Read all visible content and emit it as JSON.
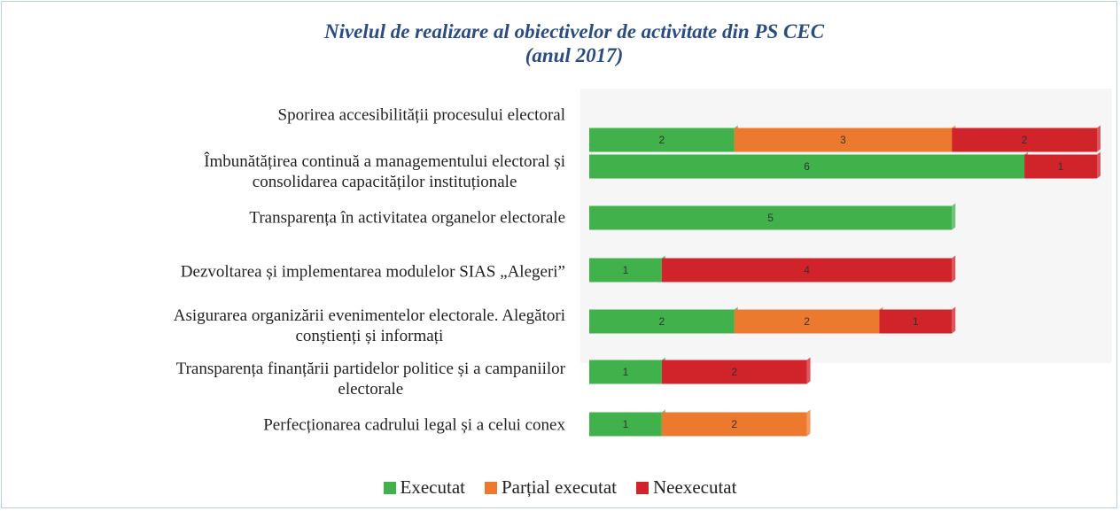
{
  "chart_data": {
    "type": "stacked-barh",
    "title": "Nivelul de realizare al obiectivelor de activitate din PS CEC\n(anul 2017)",
    "categories": [
      "Sporirea accesibilității procesului electoral",
      "Îmbunătățirea continuă a managementului electoral și\nconsolidarea capacităților instituționale",
      "Transparența în activitatea organelor electorale",
      "Dezvoltarea și implementarea modulelor SIAS „Alegeri”",
      "Asigurarea organizării evenimentelor electorale. Alegători\nconștienți și informați",
      "Transparența finanțării partidelor politice și a campaniilor\nelectorale",
      "Perfecționarea cadrului legal și a celui conex"
    ],
    "series": [
      {
        "name": "Executat",
        "color": "#41b14c",
        "values": [
          2,
          6,
          5,
          1,
          2,
          1,
          1
        ]
      },
      {
        "name": "Parțial executat",
        "color": "#ec7a2e",
        "values": [
          3,
          0,
          0,
          0,
          2,
          0,
          2
        ]
      },
      {
        "name": "Neexecutat",
        "color": "#d0232a",
        "values": [
          2,
          1,
          0,
          4,
          1,
          2,
          0
        ]
      }
    ],
    "xlim": [
      0,
      7
    ],
    "legend": "bottom"
  }
}
